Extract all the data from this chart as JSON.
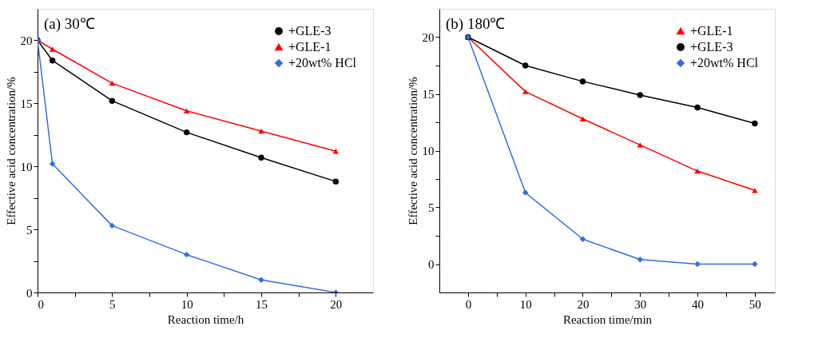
{
  "chart_data": [
    {
      "type": "line",
      "title": "(a) 30℃",
      "xlabel": "Reaction time/h",
      "ylabel": "Effective acid concentration/%",
      "xlim": [
        0,
        22.5
      ],
      "ylim": [
        0,
        22.5
      ],
      "xticks": [
        0,
        {
          "value": 2.5,
          "label": null
        },
        5,
        {
          "value": 7.5,
          "label": null
        },
        10,
        {
          "value": 12.5,
          "label": null
        },
        15,
        {
          "value": 17.5,
          "label": null
        },
        20
      ],
      "yticks": [
        0,
        {
          "value": 2.5,
          "label": null
        },
        5,
        {
          "value": 7.5,
          "label": null
        },
        10,
        {
          "value": 12.5,
          "label": null
        },
        15,
        {
          "value": 17.5,
          "label": null
        },
        20
      ],
      "legend": "top right",
      "grid": false,
      "line_style": "solid",
      "series": [
        {
          "name": "+GLE-3",
          "color": "#000000",
          "marker": "circle",
          "x": [
            0,
            1,
            5,
            10,
            15,
            20
          ],
          "values": [
            20,
            18.4,
            15.2,
            12.7,
            10.7,
            8.8
          ]
        },
        {
          "name": "+GLE-1",
          "color": "#ff0000",
          "marker": "triangle",
          "x": [
            0,
            1,
            5,
            10,
            15,
            20
          ],
          "values": [
            20,
            19.3,
            16.6,
            14.4,
            12.8,
            11.2
          ]
        },
        {
          "name": "+20wt% HCl",
          "color": "#2f6fe0",
          "marker": "diamond",
          "x": [
            0,
            1,
            5,
            10,
            15,
            20
          ],
          "values": [
            20,
            10.2,
            5.3,
            3.0,
            1.0,
            0
          ]
        }
      ]
    },
    {
      "type": "line",
      "title": "(b) 180℃",
      "xlabel": "Reaction time/min",
      "ylabel": "Effective acid concentration/%",
      "xlim": [
        -5,
        53.5
      ],
      "ylim": [
        -2.5,
        22.5
      ],
      "xticks": [
        0,
        {
          "value": 5,
          "label": null
        },
        10,
        {
          "value": 15,
          "label": null
        },
        20,
        {
          "value": 25,
          "label": null
        },
        30,
        {
          "value": 35,
          "label": null
        },
        40,
        {
          "value": 45,
          "label": null
        },
        50
      ],
      "yticks": [
        0,
        {
          "value": 2.5,
          "label": null
        },
        5,
        {
          "value": 7.5,
          "label": null
        },
        10,
        {
          "value": 12.5,
          "label": null
        },
        15,
        {
          "value": 17.5,
          "label": null
        },
        20
      ],
      "legend": "top right",
      "grid": false,
      "line_style": "solid",
      "series": [
        {
          "name": "+GLE-1",
          "color": "#ff0000",
          "marker": "triangle",
          "x": [
            0,
            10,
            20,
            30,
            40,
            50
          ],
          "values": [
            20,
            15.2,
            12.8,
            10.5,
            8.2,
            6.5
          ]
        },
        {
          "name": "+GLE-3",
          "color": "#000000",
          "marker": "circle",
          "x": [
            0,
            10,
            20,
            30,
            40,
            50
          ],
          "values": [
            20,
            17.5,
            16.1,
            14.9,
            13.8,
            12.4
          ]
        },
        {
          "name": "+20wt% HCl",
          "color": "#2f6fe0",
          "marker": "diamond",
          "x": [
            0,
            10,
            20,
            30,
            40,
            50
          ],
          "values": [
            20,
            6.3,
            2.2,
            0.4,
            0,
            0
          ]
        }
      ]
    }
  ]
}
